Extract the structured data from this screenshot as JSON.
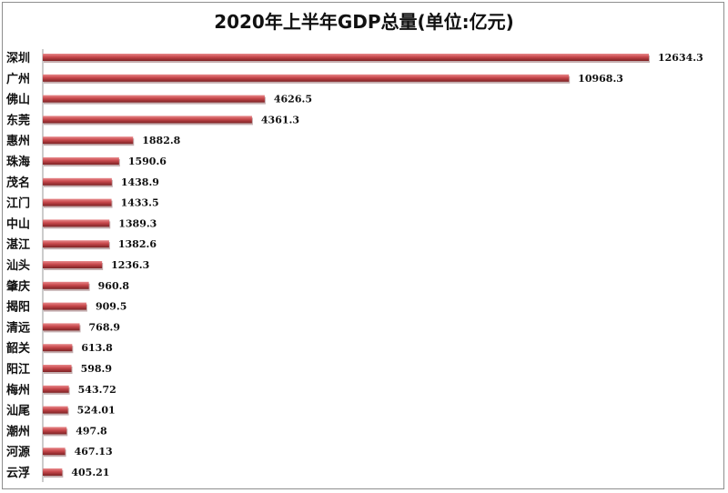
{
  "chart_data": {
    "type": "bar",
    "orientation": "horizontal",
    "title": "2020年上半年GDP总量(单位:亿元)",
    "categories": [
      "深圳",
      "广州",
      "佛山",
      "东莞",
      "惠州",
      "珠海",
      "茂名",
      "江门",
      "中山",
      "湛江",
      "汕头",
      "肇庆",
      "揭阳",
      "清远",
      "韶关",
      "阳江",
      "梅州",
      "汕尾",
      "潮州",
      "河源",
      "云浮"
    ],
    "values": [
      12634.3,
      10968.3,
      4626.5,
      4361.3,
      1882.8,
      1590.6,
      1438.9,
      1433.5,
      1389.3,
      1382.6,
      1236.3,
      960.8,
      909.5,
      768.9,
      613.8,
      598.9,
      543.72,
      524.01,
      497.8,
      467.13,
      405.21
    ],
    "value_labels": [
      "12634.3",
      "10968.3",
      "4626.5",
      "4361.3",
      "1882.8",
      "1590.6",
      "1438.9",
      "1433.5",
      "1389.3",
      "1382.6",
      "1236.3",
      "960.8",
      "909.5",
      "768.9",
      "613.8",
      "598.9",
      "543.72",
      "524.01",
      "497.8",
      "467.13",
      "405.21"
    ],
    "xlabel": "",
    "ylabel": "",
    "xlim": [
      0,
      12634.3
    ],
    "grid": false,
    "legend": "none",
    "bar_color": "#c8484c",
    "bar_highlight": "#e88a8c",
    "bar_shadow": "#7d2224"
  }
}
